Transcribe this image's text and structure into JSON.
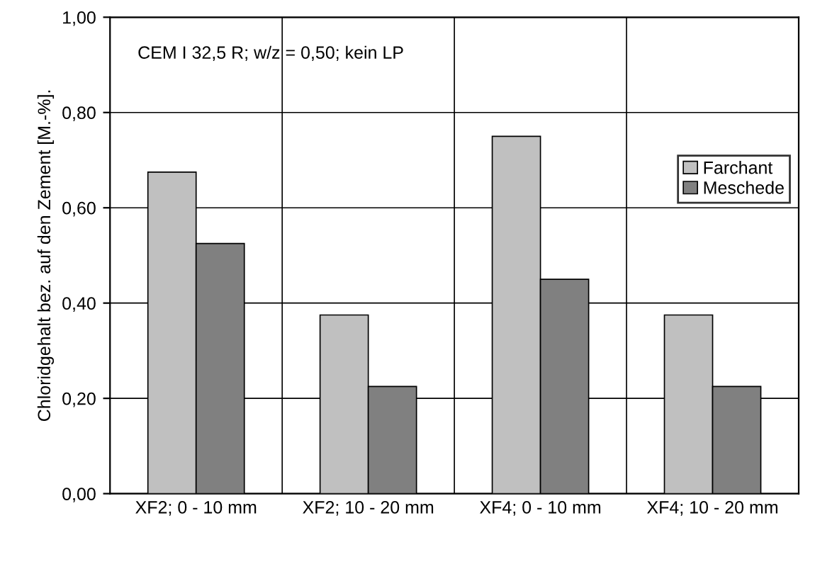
{
  "chart_data": {
    "type": "bar",
    "ylabel": "Chloridgehalt bez. auf den Zement [M.-%].",
    "categories": [
      "XF2; 0 - 10 mm",
      "XF2; 10 - 20 mm",
      "XF4; 0 - 10 mm",
      "XF4; 10 - 20 mm"
    ],
    "series": [
      {
        "name": "Farchant",
        "color": "#c0c0c0",
        "values": [
          0.675,
          0.375,
          0.75,
          0.375
        ]
      },
      {
        "name": "Meschede",
        "color": "#808080",
        "values": [
          0.525,
          0.225,
          0.45,
          0.225
        ]
      }
    ],
    "ylim": [
      0,
      1
    ],
    "yticks": [
      {
        "value": 0,
        "label": "0,00"
      },
      {
        "value": 0.2,
        "label": "0,20"
      },
      {
        "value": 0.4,
        "label": "0,40"
      },
      {
        "value": 0.6,
        "label": "0,60"
      },
      {
        "value": 0.8,
        "label": "0,80"
      },
      {
        "value": 1,
        "label": "1,00"
      }
    ],
    "grid": true,
    "legend": "right",
    "annotations": [
      "CEM I 32,5 R; w/z = 0,50; kein LP"
    ]
  }
}
